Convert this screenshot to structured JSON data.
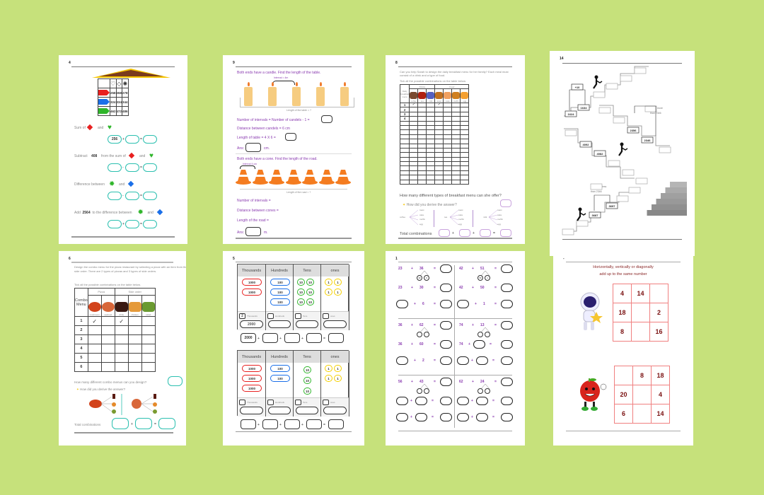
{
  "colors": {
    "background": "#c6e17b",
    "teal": "#2cc0b0",
    "purple": "#8a3bb0",
    "maroon": "#8b1a1a",
    "pink": "#f08080"
  },
  "pages": [
    {
      "number": "4",
      "table": {
        "header_icons": [
          "heart-outline-icon",
          "diamond-outline-icon",
          "sun-outline-icon"
        ],
        "rows": [
          {
            "color": "#e82020",
            "values": [
              "258",
              "268",
              "278"
            ]
          },
          {
            "color": "#1a6fe8",
            "values": [
              "324",
              "334",
              "344"
            ]
          },
          {
            "color": "#2fb52a",
            "values": [
              "462",
              "472",
              "486"
            ]
          }
        ]
      },
      "questions": [
        {
          "text": "Sum of",
          "mid": "and",
          "eq": [
            "256",
            "",
            ""
          ],
          "op": "+"
        },
        {
          "text": "Subtract",
          "num": "408",
          "text2": "from the sum of",
          "mid": "and",
          "eq": [
            "",
            "",
            ""
          ],
          "op": "-"
        },
        {
          "text": "Difference between",
          "mid": "and",
          "eq": [
            "",
            "",
            ""
          ],
          "op": "-"
        },
        {
          "text": "Add",
          "num": "2564",
          "text2": "to the difference between",
          "mid": "and",
          "eq": [
            "",
            "",
            ""
          ],
          "op": "+"
        }
      ],
      "equals": "="
    },
    {
      "number": "9",
      "q1": "Both ends have a candle. Find the length of the table.",
      "interval": "Interval = 4m",
      "table_len": "Length of the table = ?",
      "lines1": [
        "Number of intervals = Number of candels - 1 =",
        "Distance between candels = 6 cm",
        "Length of table = 4 X 6 ="
      ],
      "ans": "Ans:",
      "unit1": "cm.",
      "q2": "Both ends have a cone. Find the length of the road.",
      "interval2": "Interval 4 cm",
      "road_len": "Length of the road = ?",
      "lines2": [
        "Number of intervals =",
        "Distance between cones =",
        "Length of the road ="
      ],
      "unit2": "m."
    },
    {
      "number": "8",
      "intro": "Can you help Sarah to design the daily breakfast menu for her family? Each meal must consist of a drink and a type of food.",
      "tick_line": "Tick all the possible combinations on the table below.",
      "row_header": "Daily breakfast menu",
      "group1": "Drinks",
      "group2": "Food",
      "items": [
        "coffee",
        "tea",
        "milk",
        "toast",
        "cake",
        "muffin",
        "egg"
      ],
      "row_numbers": [
        "1",
        "2",
        "3",
        "4"
      ],
      "question": "How many different types of breakfast menu can she offer?",
      "derive": "How did you derive the answer?",
      "trees": [
        {
          "root": "coffee",
          "leaves": [
            "toast",
            "cake",
            "muffin",
            "egg"
          ]
        },
        {
          "root": "tea",
          "leaves": [
            "toast",
            "cake",
            "muffin",
            "egg"
          ]
        },
        {
          "root": "milk",
          "leaves": [
            "toast",
            "cake",
            "muffin",
            "egg"
          ]
        }
      ],
      "total": "Total combinations"
    },
    {
      "number": "14",
      "labels": [
        "+10",
        "1634",
        "1624",
        "more",
        "than 2346",
        "2356",
        "2346",
        "4092",
        "4082",
        "less",
        "than 2346",
        "3697",
        "3687"
      ]
    },
    {
      "number": "6",
      "intro": "Design the combo menu for the pizza restaurant by selecting a pizza with an item from the side order. There are 2 types of pizzas and 3 types of side orders.",
      "tick_line": "Tick all the possible combinations on the table below.",
      "row_header": "Combo Menu",
      "group1": "Pizza",
      "group2": "Side order",
      "items": [
        "mushroom",
        "seafood",
        "drink",
        "chicken",
        "salad"
      ],
      "row_numbers": [
        "1",
        "2",
        "3",
        "4",
        "5",
        "6"
      ],
      "question": "How many different combo menus can you design?",
      "derive": "How did you derive the answer?",
      "total": "Total combinations"
    },
    {
      "number": "5",
      "headers": [
        "Thousands",
        "Hundreds",
        "Tens",
        "ones"
      ],
      "blocks": [
        {
          "thousands": [
            "1000",
            "1000"
          ],
          "hundreds": [
            "100",
            "100",
            "100"
          ],
          "tens": [
            "10",
            "10",
            "10",
            "10",
            "10",
            "10"
          ],
          "ones": [
            "1",
            "1",
            "1",
            "1"
          ],
          "counts": [
            "2",
            "",
            "",
            ""
          ],
          "totals": [
            "2000",
            "",
            "",
            ""
          ],
          "sum": [
            "2000",
            "",
            "",
            "",
            ""
          ]
        },
        {
          "thousands": [
            "1000",
            "1000",
            "1000"
          ],
          "hundreds": [
            "100",
            "100"
          ],
          "tens": [
            "10",
            "10",
            "10"
          ],
          "ones": [
            "1",
            "1",
            "1",
            "1"
          ],
          "counts": [
            "",
            "",
            "",
            ""
          ],
          "totals": [
            "",
            "",
            "",
            ""
          ],
          "sum": [
            "",
            "",
            "",
            "",
            ""
          ]
        }
      ],
      "count_labels": [
        "Thousands",
        "Hundreds",
        "Tens",
        "ones"
      ]
    },
    {
      "number": "1",
      "problems": [
        {
          "a": "23",
          "b": "36",
          "split": [
            "30",
            "6"
          ],
          "l2": [
            "23",
            "30"
          ],
          "l3": [
            "",
            "6"
          ]
        },
        {
          "a": "42",
          "b": "51",
          "split": [
            "50",
            "1"
          ],
          "l2": [
            "42",
            "50"
          ],
          "l3": [
            "",
            "1"
          ]
        },
        {
          "a": "36",
          "b": "62",
          "split": [
            "",
            ""
          ],
          "l2": [
            "36",
            "60"
          ],
          "l3": [
            "",
            "2"
          ]
        },
        {
          "a": "74",
          "b": "13",
          "split": [
            "",
            ""
          ],
          "l2": [
            "74",
            ""
          ],
          "l3": [
            "",
            ""
          ]
        },
        {
          "a": "56",
          "b": "43",
          "split": [
            "",
            ""
          ],
          "l2": [
            "",
            ""
          ],
          "l3": [
            "",
            ""
          ]
        },
        {
          "a": "62",
          "b": "24",
          "split": [
            "",
            ""
          ],
          "l2": [
            "",
            ""
          ],
          "l3": [
            "",
            ""
          ]
        }
      ]
    },
    {
      "number": "-",
      "title1": "Horizontally, vertically or diagonally",
      "title2": "add up to the same number",
      "grid1": [
        "4",
        "14",
        "",
        "18",
        "",
        "2",
        "8",
        "",
        "16"
      ],
      "grid2": [
        "",
        "8",
        "18",
        "20",
        "",
        "4",
        "6",
        "",
        "14"
      ]
    }
  ]
}
